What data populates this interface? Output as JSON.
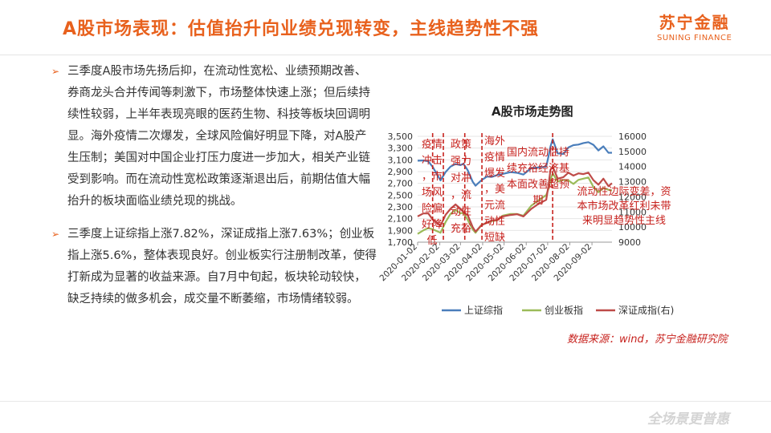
{
  "title": "A股市场表现：估值抬升向业绩兑现转变，主线趋势性不强",
  "logo": {
    "cn": "苏宁金融",
    "en": "SUNING FINANCE"
  },
  "bullets": [
    "三季度A股市场先扬后抑，在流动性宽松、业绩预期改善、券商龙头合并传闻等刺激下，市场整体快速上涨；但后续持续性较弱，上半年表现亮眼的医药生物、科技等板块回调明显。海外疫情二次爆发，全球风险偏好明显下降，对A股产生压制；美国对中国企业打压力度进一步加大，相关产业链受到影响。而在流动性宽松政策逐渐退出后，前期估值大幅抬升的板块面临业绩兑现的挑战。",
    "三季度上证综指上涨7.82%，深证成指上涨7.63%；创业板指上涨5.6%，整体表现良好。创业板实行注册制改革，使得打新成为显著的收益来源。自7月中旬起，板块轮动较快，缺乏持续的做多机会，成交量不断萎缩，市场情绪较弱。"
  ],
  "source": "数据来源：wind，苏宁金融研究院",
  "slogan": "全场景更普惠",
  "colors": {
    "accent": "#e8611d",
    "annotation": "#c7221e",
    "shanghai": "#4a7ebb",
    "chinext": "#9bbb59",
    "shenzhen": "#be4b48"
  },
  "chart_data": {
    "type": "line",
    "title": "A股市场走势图",
    "x": [
      "2020-01-02",
      "2020-01-10",
      "2020-01-17",
      "2020-01-23",
      "2020-02-03",
      "2020-02-10",
      "2020-02-17",
      "2020-02-24",
      "2020-03-02",
      "2020-03-06",
      "2020-03-12",
      "2020-03-19",
      "2020-03-23",
      "2020-03-31",
      "2020-04-08",
      "2020-04-15",
      "2020-04-22",
      "2020-04-30",
      "2020-05-11",
      "2020-05-20",
      "2020-05-29",
      "2020-06-09",
      "2020-06-18",
      "2020-06-30",
      "2020-07-03",
      "2020-07-06",
      "2020-07-09",
      "2020-07-16",
      "2020-07-24",
      "2020-07-31",
      "2020-08-07",
      "2020-08-14",
      "2020-08-21",
      "2020-08-28",
      "2020-09-04",
      "2020-09-11",
      "2020-09-18",
      "2020-09-25",
      "2020-09-30"
    ],
    "x_ticks": [
      "2020-01-02",
      "2020-02-02",
      "2020-03-02",
      "2020-04-02",
      "2020-05-02",
      "2020-06-02",
      "2020-07-02",
      "2020-08-02",
      "2020-09-02"
    ],
    "y_left": {
      "ticks": [
        "1,700",
        "1,900",
        "2,100",
        "2,300",
        "2,500",
        "2,700",
        "2,900",
        "3,100",
        "3,300",
        "3,500"
      ],
      "ylim": [
        1700,
        3500
      ]
    },
    "y_right": {
      "ticks": [
        "9000",
        "10000",
        "11000",
        "12000",
        "13000",
        "14000",
        "15000",
        "16000"
      ],
      "ylim": [
        9000,
        16000
      ]
    },
    "series": [
      {
        "name": "上证综指",
        "axis": "left",
        "values": [
          3085,
          3090,
          3075,
          2980,
          2750,
          2890,
          2985,
          3030,
          3010,
          3035,
          2925,
          2730,
          2660,
          2750,
          2815,
          2810,
          2840,
          2860,
          2890,
          2880,
          2850,
          2960,
          2970,
          2985,
          3150,
          3330,
          3450,
          3210,
          3200,
          3310,
          3350,
          3360,
          3385,
          3400,
          3355,
          3260,
          3330,
          3220,
          3220
        ]
      },
      {
        "name": "创业板指",
        "axis": "left",
        "values": [
          1840,
          1900,
          1940,
          1920,
          1860,
          2040,
          2180,
          2250,
          2190,
          2200,
          2080,
          1920,
          1860,
          1990,
          2030,
          2060,
          2070,
          2150,
          2180,
          2180,
          2150,
          2320,
          2400,
          2500,
          2600,
          2760,
          2870,
          2730,
          2760,
          2750,
          2690,
          2760,
          2780,
          2800,
          2640,
          2550,
          2620,
          2590,
          2580
        ]
      },
      {
        "name": "深证成指(右)",
        "axis": "right",
        "values": [
          10700,
          10900,
          10900,
          10500,
          10100,
          10800,
          11200,
          11500,
          11200,
          11000,
          10800,
          10000,
          9700,
          10100,
          10300,
          10450,
          10450,
          10700,
          10800,
          10850,
          10700,
          11200,
          11500,
          11800,
          12700,
          13800,
          14000,
          13200,
          13300,
          13600,
          13400,
          13550,
          13500,
          13600,
          13100,
          12800,
          13200,
          12700,
          12900
        ]
      }
    ],
    "annotations": [
      "疫情冲击，市场风险偏好降低",
      "政策强力对冲，流动性充裕",
      "海外疫情爆发，美元流动性短缺",
      "国内流动性持续充裕经济基本面改善超预期",
      "流动性边际变差，资本市场改革红利未带来明显趋势性主线"
    ]
  }
}
